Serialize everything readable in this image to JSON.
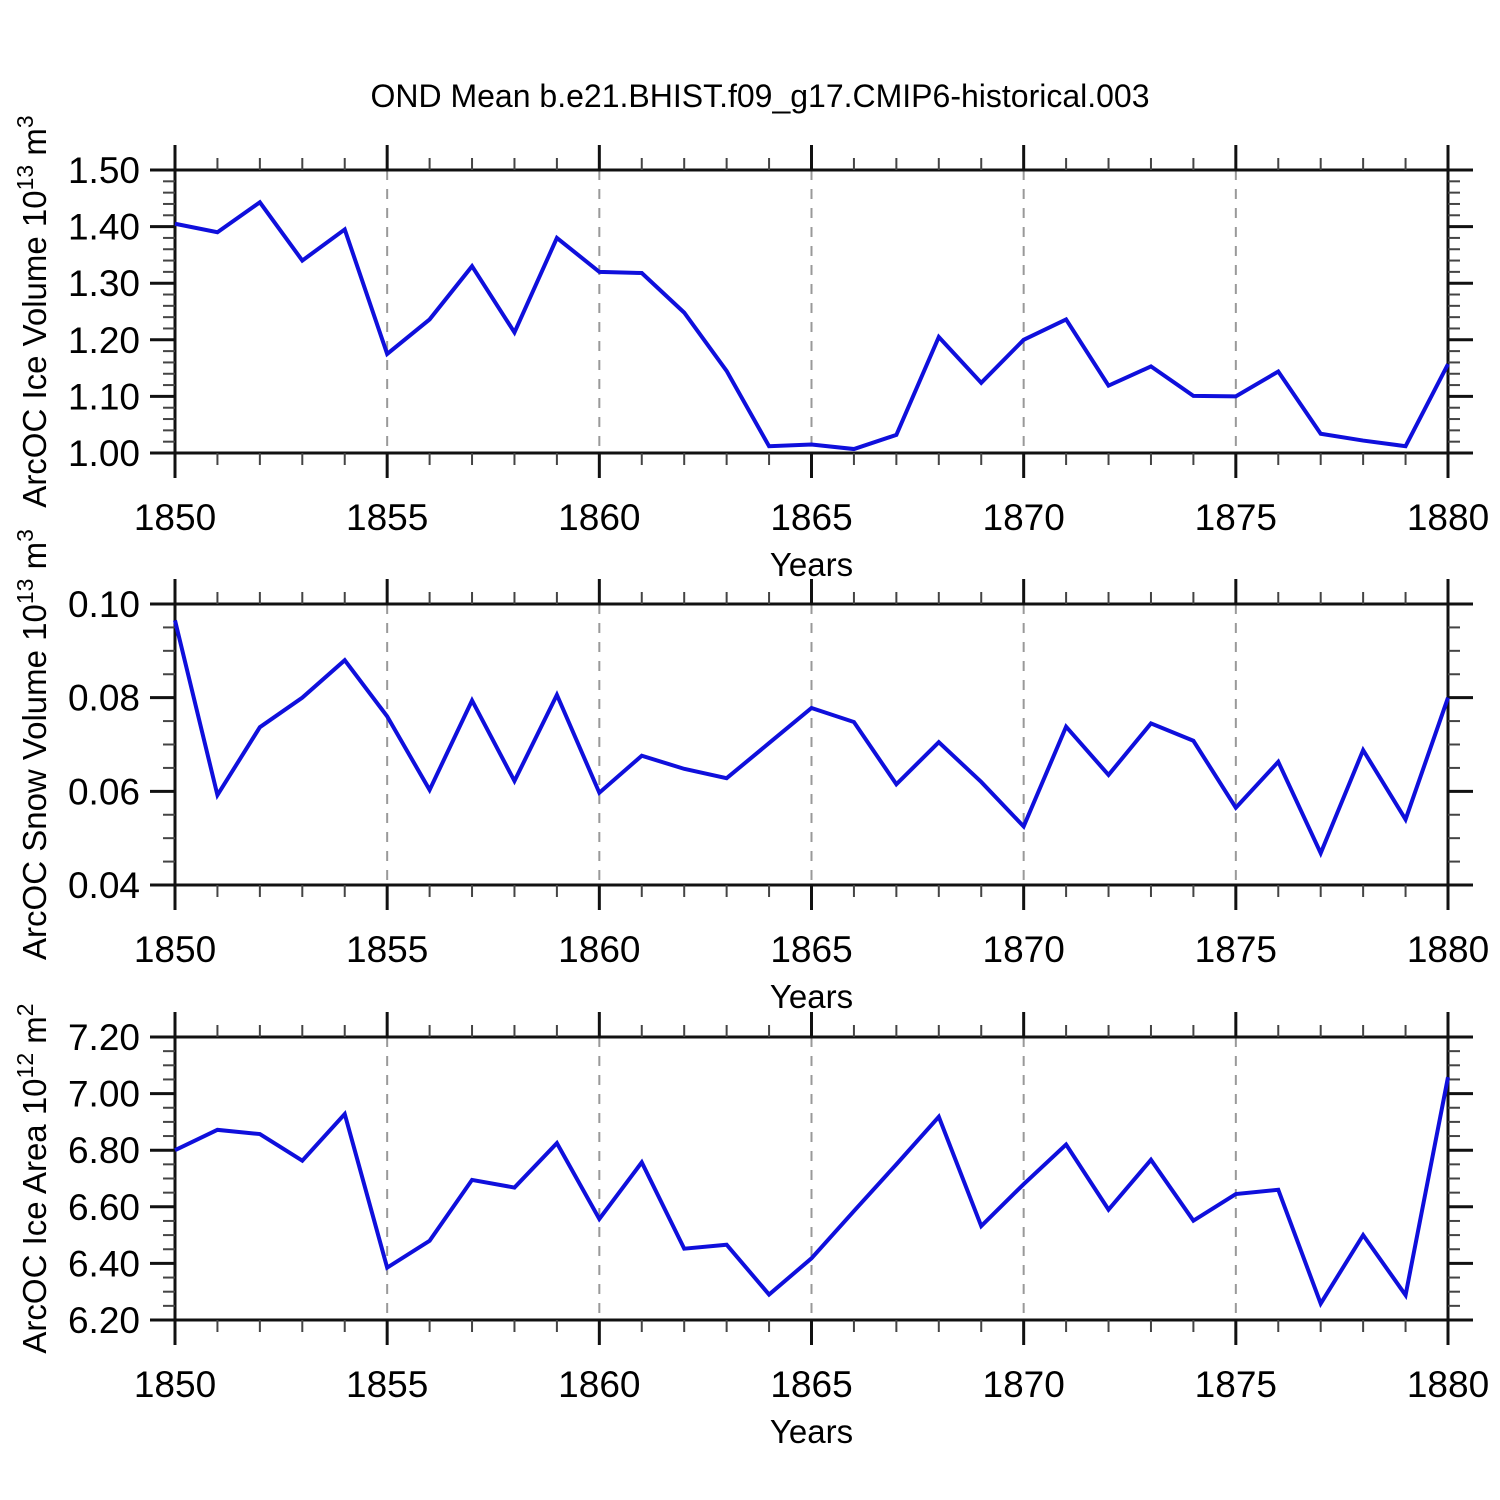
{
  "figure": {
    "title": "OND Mean b.e21.BHIST.f09_g17.CMIP6-historical.003",
    "background": "#ffffff",
    "line_color": "#0f0fdc",
    "axis_color": "#111111",
    "minor_tick_color": "#444444",
    "grid_color": "#999999"
  },
  "chart_data": [
    {
      "type": "line",
      "name": "ice-volume",
      "ylabel_parts": [
        {
          "text": "ArcOC Ice Volume 10"
        },
        {
          "text": "13",
          "sup": true
        },
        {
          "text": " m"
        },
        {
          "text": "3",
          "sup": true
        }
      ],
      "xlabel": "Years",
      "x_range": [
        1850,
        1880
      ],
      "x_tick_labels": [
        "1850",
        "1855",
        "1860",
        "1865",
        "1870",
        "1875",
        "1880"
      ],
      "x_major_ticks": [
        1850,
        1855,
        1860,
        1865,
        1870,
        1875,
        1880
      ],
      "x_minor_step": 1,
      "grid_x": [
        1855,
        1860,
        1865,
        1870,
        1875
      ],
      "ylim": [
        1.0,
        1.5
      ],
      "y_major_ticks": [
        1.0,
        1.1,
        1.2,
        1.3,
        1.4,
        1.5
      ],
      "y_tick_labels": [
        "1.00",
        "1.10",
        "1.20",
        "1.30",
        "1.40",
        "1.50"
      ],
      "y_minor_step": 0.02,
      "x": [
        1850,
        1851,
        1852,
        1853,
        1854,
        1855,
        1856,
        1857,
        1858,
        1859,
        1860,
        1861,
        1862,
        1863,
        1864,
        1865,
        1866,
        1867,
        1868,
        1869,
        1870,
        1871,
        1872,
        1873,
        1874,
        1875,
        1876,
        1877,
        1878,
        1879,
        1880
      ],
      "values": [
        1.405,
        1.39,
        1.443,
        1.34,
        1.395,
        1.175,
        1.236,
        1.33,
        1.213,
        1.38,
        1.32,
        1.318,
        1.248,
        1.145,
        1.012,
        1.015,
        1.007,
        1.032,
        1.205,
        1.124,
        1.2,
        1.236,
        1.119,
        1.153,
        1.101,
        1.1,
        1.144,
        1.034,
        1.022,
        1.012,
        1.157
      ]
    },
    {
      "type": "line",
      "name": "snow-volume",
      "ylabel_parts": [
        {
          "text": "ArcOC Snow Volume 10"
        },
        {
          "text": "13",
          "sup": true
        },
        {
          "text": " m"
        },
        {
          "text": "3",
          "sup": true
        }
      ],
      "xlabel": "Years",
      "x_range": [
        1850,
        1880
      ],
      "x_tick_labels": [
        "1850",
        "1855",
        "1860",
        "1865",
        "1870",
        "1875",
        "1880"
      ],
      "x_major_ticks": [
        1850,
        1855,
        1860,
        1865,
        1870,
        1875,
        1880
      ],
      "x_minor_step": 1,
      "grid_x": [
        1855,
        1860,
        1865,
        1870,
        1875
      ],
      "ylim": [
        0.04,
        0.1
      ],
      "y_major_ticks": [
        0.04,
        0.06,
        0.08,
        0.1
      ],
      "y_tick_labels": [
        "0.04",
        "0.06",
        "0.08",
        "0.10"
      ],
      "y_minor_step": 0.005,
      "x": [
        1850,
        1851,
        1852,
        1853,
        1854,
        1855,
        1856,
        1857,
        1858,
        1859,
        1860,
        1861,
        1862,
        1863,
        1864,
        1865,
        1866,
        1867,
        1868,
        1869,
        1870,
        1871,
        1872,
        1873,
        1874,
        1875,
        1876,
        1877,
        1878,
        1879,
        1880
      ],
      "values": [
        0.0965,
        0.0592,
        0.0737,
        0.08,
        0.088,
        0.076,
        0.0603,
        0.0794,
        0.0622,
        0.0806,
        0.0597,
        0.0676,
        0.0648,
        0.0628,
        0.0703,
        0.0778,
        0.0748,
        0.0615,
        0.0705,
        0.062,
        0.0525,
        0.0738,
        0.0635,
        0.0745,
        0.0708,
        0.0565,
        0.0663,
        0.0468,
        0.0688,
        0.054,
        0.08
      ]
    },
    {
      "type": "line",
      "name": "ice-area",
      "ylabel_parts": [
        {
          "text": "ArcOC Ice Area 10"
        },
        {
          "text": "12",
          "sup": true
        },
        {
          "text": " m"
        },
        {
          "text": "2",
          "sup": true
        }
      ],
      "xlabel": "Years",
      "x_range": [
        1850,
        1880
      ],
      "x_tick_labels": [
        "1850",
        "1855",
        "1860",
        "1865",
        "1870",
        "1875",
        "1880"
      ],
      "x_major_ticks": [
        1850,
        1855,
        1860,
        1865,
        1870,
        1875,
        1880
      ],
      "x_minor_step": 1,
      "grid_x": [
        1855,
        1860,
        1865,
        1870,
        1875
      ],
      "ylim": [
        6.2,
        7.2
      ],
      "y_major_ticks": [
        6.2,
        6.4,
        6.6,
        6.8,
        7.0,
        7.2
      ],
      "y_tick_labels": [
        "6.20",
        "6.40",
        "6.60",
        "6.80",
        "7.00",
        "7.20"
      ],
      "y_minor_step": 0.05,
      "x": [
        1850,
        1851,
        1852,
        1853,
        1854,
        1855,
        1856,
        1857,
        1858,
        1859,
        1860,
        1861,
        1862,
        1863,
        1864,
        1865,
        1866,
        1867,
        1868,
        1869,
        1870,
        1871,
        1872,
        1873,
        1874,
        1875,
        1876,
        1877,
        1878,
        1879,
        1880
      ],
      "values": [
        6.8,
        6.872,
        6.857,
        6.763,
        6.928,
        6.385,
        6.48,
        6.695,
        6.668,
        6.825,
        6.557,
        6.757,
        6.452,
        6.466,
        6.29,
        6.418,
        6.585,
        6.75,
        6.918,
        6.532,
        6.68,
        6.82,
        6.59,
        6.766,
        6.551,
        6.645,
        6.66,
        6.258,
        6.5,
        6.288,
        7.058
      ]
    }
  ]
}
